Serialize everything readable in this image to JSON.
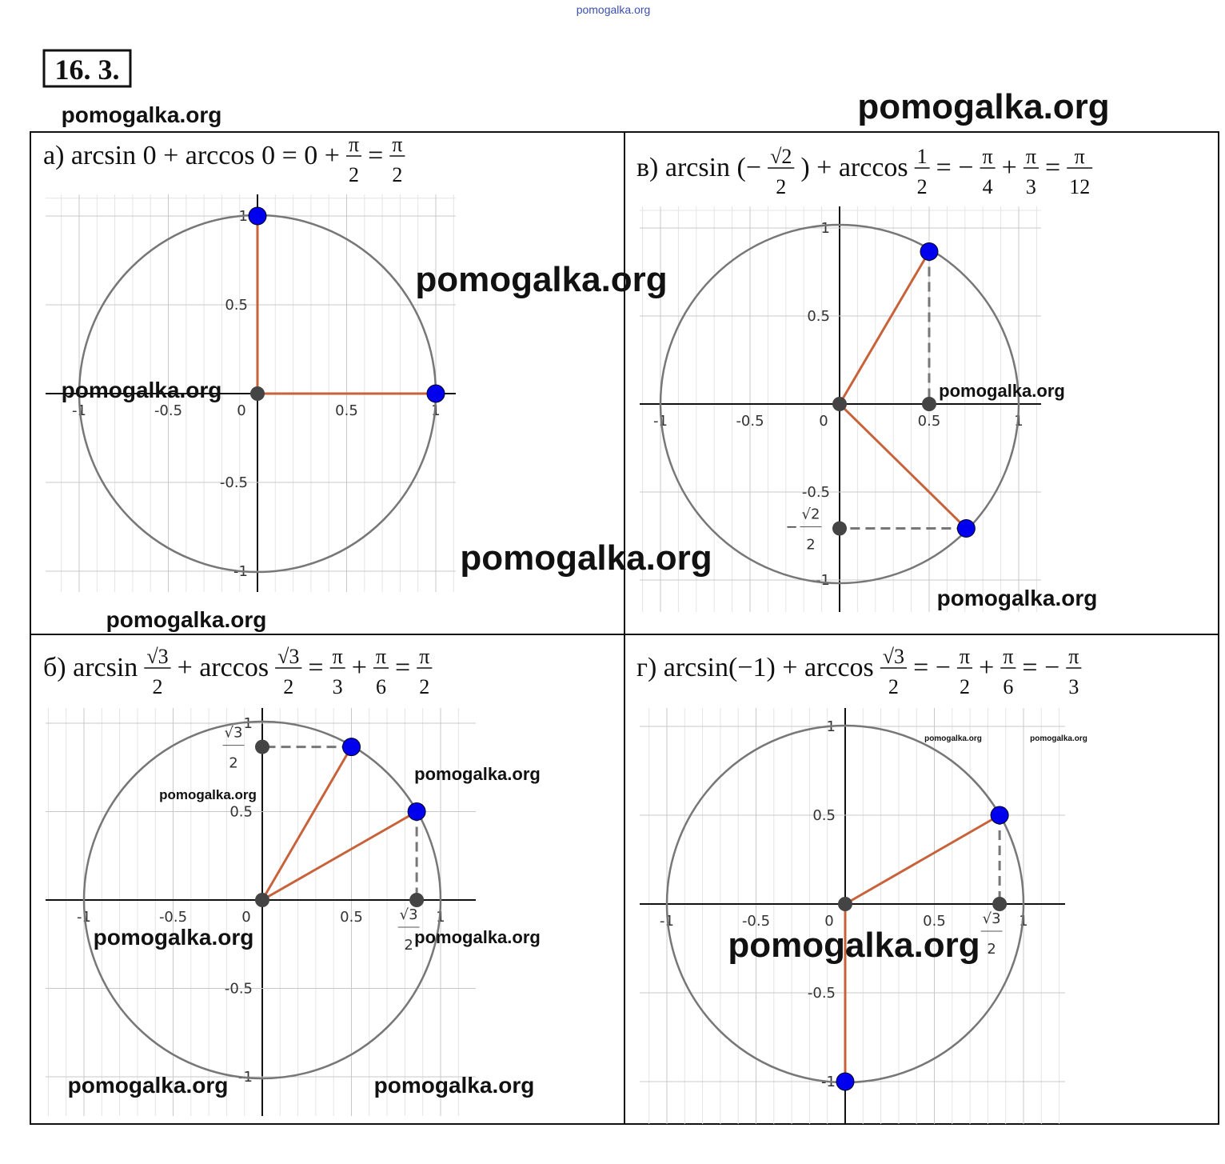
{
  "header": {
    "site": "pomogalka.org",
    "number": "16. 3."
  },
  "panels": [
    {
      "formula": [
        "а) arcsin 0 + arccos 0 = 0 +",
        {
          "num": "π",
          "den": "2"
        },
        "=",
        {
          "num": "π",
          "den": "2"
        }
      ],
      "xticks": [
        -1,
        -0.5,
        0,
        0.5,
        1
      ],
      "yticks": [
        -1,
        -0.5,
        0.5,
        1
      ],
      "points": [
        {
          "x": 0,
          "y": 1
        },
        {
          "x": 1,
          "y": 0
        }
      ],
      "special": []
    },
    {
      "formula": [
        "б) arcsin",
        {
          "num": "√3",
          "den": "2"
        },
        "+ arccos",
        {
          "num": "√3",
          "den": "2"
        },
        "=",
        {
          "num": "π",
          "den": "3"
        },
        "+",
        {
          "num": "π",
          "den": "6"
        },
        "=",
        {
          "num": "π",
          "den": "2"
        }
      ],
      "xticks": [
        -1,
        -0.5,
        0,
        0.5,
        1
      ],
      "yticks": [
        -1,
        -0.5,
        0.5,
        1
      ],
      "points": [
        {
          "x": 0.5,
          "y": 0.866,
          "project": "y"
        },
        {
          "x": 0.866,
          "y": 0.5,
          "project": "x"
        }
      ],
      "special": [
        {
          "axis": "y",
          "at": 0.866,
          "num": "√3",
          "den": "2"
        },
        {
          "axis": "x",
          "at": 0.866,
          "num": "√3",
          "den": "2"
        }
      ]
    },
    {
      "formula": [
        "в) arcsin (−",
        {
          "num": "√2",
          "den": "2"
        },
        ") + arccos",
        {
          "num": "1",
          "den": "2"
        },
        "= −",
        {
          "num": "π",
          "den": "4"
        },
        "+",
        {
          "num": "π",
          "den": "3"
        },
        "=",
        {
          "num": "π",
          "den": "12"
        }
      ],
      "xticks": [
        -1,
        -0.5,
        0,
        0.5,
        1
      ],
      "yticks": [
        -1,
        -0.5,
        0.5,
        1
      ],
      "points": [
        {
          "x": 0.5,
          "y": 0.866,
          "project": "x"
        },
        {
          "x": 0.707,
          "y": -0.707,
          "project": "y"
        }
      ],
      "special": [
        {
          "axis": "y",
          "at": -0.707,
          "sign": "−",
          "num": "√2",
          "den": "2"
        }
      ]
    },
    {
      "formula": [
        "г) arcsin(−1) + arccos",
        {
          "num": "√3",
          "den": "2"
        },
        "= −",
        {
          "num": "π",
          "den": "2"
        },
        "+",
        {
          "num": "π",
          "den": "6"
        },
        "= −",
        {
          "num": "π",
          "den": "3"
        }
      ],
      "xticks": [
        -1,
        -0.5,
        0,
        0.5,
        1
      ],
      "yticks": [
        -1,
        -0.5,
        0.5,
        1
      ],
      "points": [
        {
          "x": 0.866,
          "y": 0.5,
          "project": "x"
        },
        {
          "x": 0,
          "y": -1
        }
      ],
      "special": [
        {
          "axis": "x",
          "at": 0.866,
          "num": "√3",
          "den": "2"
        }
      ]
    }
  ],
  "watermarks": [
    "pomogalka.org",
    "pomogalka.org",
    "pomogalka.org",
    "pomogalka.org",
    "pomogalka.org",
    "pomogalka.org",
    "pomogalka.org",
    "pomogalka.org",
    "pomogalka.org",
    "pomogalka.org",
    "pomogalka.org",
    "pomogalka.org",
    "pomogalka.org",
    "pomogalka.org",
    "pomogalka.org",
    "pomogalka.org",
    "pomogalka.org"
  ]
}
